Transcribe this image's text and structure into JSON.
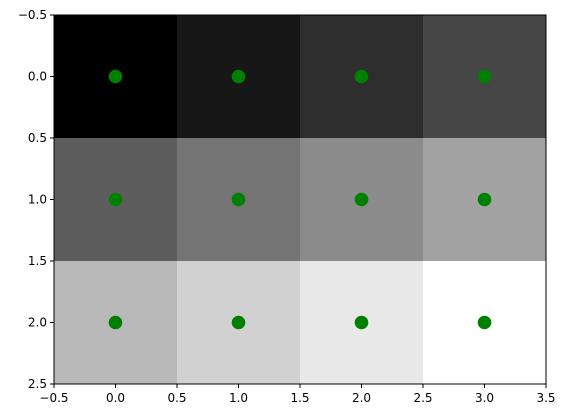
{
  "chart_data": {
    "type": "heatmap",
    "title": "",
    "xlabel": "",
    "ylabel": "",
    "xlim": [
      -0.5,
      3.5
    ],
    "ylim": [
      2.5,
      -0.5
    ],
    "y_inverted": true,
    "grid": false,
    "colormap": "gray",
    "matrix": [
      [
        0,
        1,
        2,
        3
      ],
      [
        4,
        5,
        6,
        7
      ],
      [
        8,
        9,
        10,
        11
      ]
    ],
    "x_ticks": [
      -0.5,
      0.0,
      0.5,
      1.0,
      1.5,
      2.0,
      2.5,
      3.0,
      3.5
    ],
    "x_tick_labels": [
      "−0.5",
      "0.0",
      "0.5",
      "1.0",
      "1.5",
      "2.0",
      "2.5",
      "3.0",
      "3.5"
    ],
    "y_ticks": [
      -0.5,
      0.0,
      0.5,
      1.0,
      1.5,
      2.0,
      2.5
    ],
    "y_tick_labels": [
      "−0.5",
      "0.0",
      "0.5",
      "1.0",
      "1.5",
      "2.0",
      "2.5"
    ],
    "scatter": {
      "color": "#008000",
      "x": [
        0,
        1,
        2,
        3,
        0,
        1,
        2,
        3,
        0,
        1,
        2,
        3
      ],
      "y": [
        0,
        0,
        0,
        0,
        1,
        1,
        1,
        1,
        2,
        2,
        2,
        2
      ]
    }
  }
}
